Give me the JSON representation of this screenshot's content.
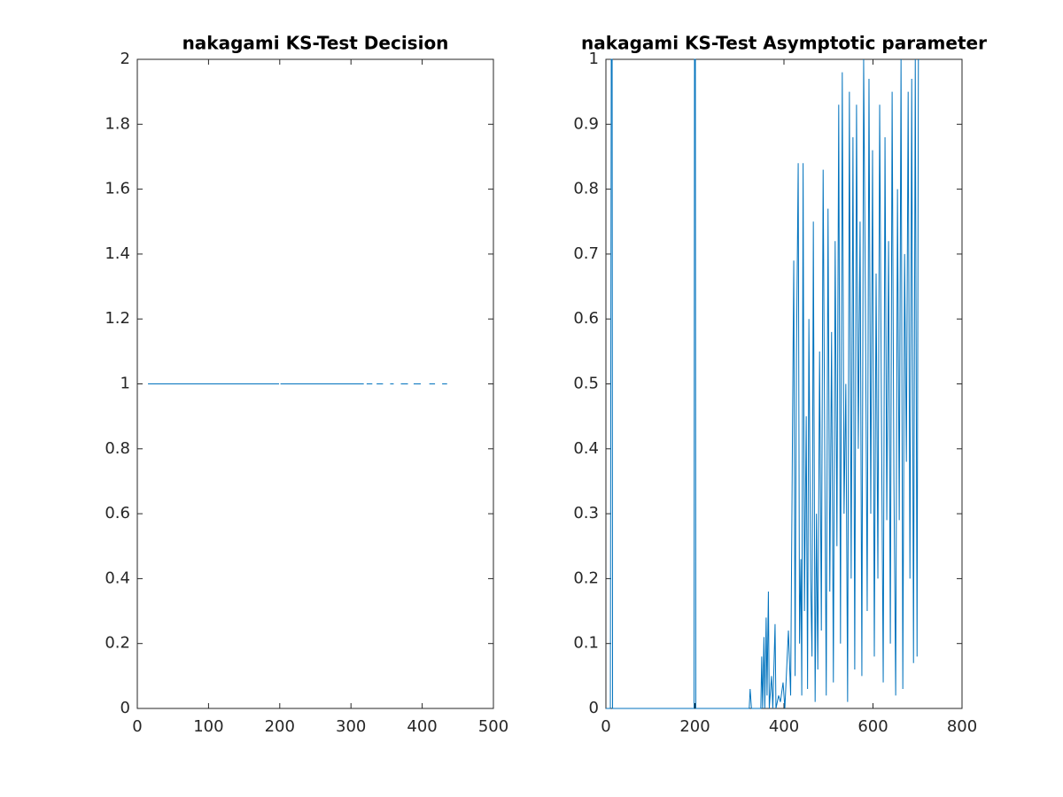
{
  "chart_data": [
    {
      "type": "line",
      "title": "nakagami KS-Test Decision",
      "x": [
        15,
        199,
        200,
        201,
        318,
        319,
        322,
        330,
        331,
        336,
        345,
        348,
        355,
        360,
        362,
        370,
        380,
        385,
        388,
        398,
        405,
        410,
        418,
        425,
        428,
        435
      ],
      "series": [
        {
          "color": "#0072bd",
          "values": [
            1,
            1,
            null,
            1,
            1,
            null,
            1,
            1,
            null,
            1,
            1,
            null,
            1,
            1,
            null,
            1,
            1,
            null,
            1,
            1,
            null,
            1,
            1,
            null,
            1,
            1
          ]
        }
      ],
      "xlim": [
        0,
        500
      ],
      "xticks": [
        0,
        100,
        200,
        300,
        400,
        500
      ],
      "ylim": [
        0,
        2
      ],
      "yticks": [
        0,
        0.2,
        0.4,
        0.6,
        0.8,
        1,
        1.2,
        1.4,
        1.6,
        1.8,
        2
      ]
    },
    {
      "type": "line",
      "title": "nakagami KS-Test Asymptotic parameter",
      "x": [
        0,
        10,
        12,
        14,
        15,
        198,
        199,
        201,
        202,
        322,
        324,
        327,
        348,
        350,
        352,
        355,
        357,
        360,
        362,
        365,
        367,
        372,
        375,
        380,
        382,
        388,
        392,
        398,
        402,
        410,
        415,
        420,
        422,
        425,
        428,
        432,
        435,
        438,
        440,
        443,
        446,
        450,
        453,
        456,
        460,
        463,
        466,
        470,
        473,
        476,
        480,
        484,
        488,
        492,
        495,
        499,
        503,
        507,
        511,
        515,
        519,
        523,
        527,
        531,
        535,
        539,
        543,
        547,
        551,
        555,
        559,
        563,
        567,
        571,
        575,
        579,
        583,
        587,
        591,
        595,
        599,
        603,
        607,
        611,
        615,
        619,
        623,
        627,
        631,
        635,
        639,
        643,
        647,
        651,
        655,
        659,
        663,
        667,
        671,
        675,
        679,
        683,
        687,
        691,
        695,
        699,
        702
      ],
      "series": [
        {
          "color": "#0072bd",
          "values": [
            0,
            0,
            1,
            1,
            0,
            0,
            1,
            1,
            0,
            0,
            0.03,
            0,
            0,
            0.08,
            0,
            0.11,
            0,
            0.14,
            0.02,
            0.18,
            0,
            0.05,
            0,
            0.13,
            0,
            0.02,
            0.01,
            0.04,
            0,
            0.12,
            0.02,
            0.51,
            0.69,
            0.05,
            0.54,
            0.84,
            0.1,
            0.23,
            0.02,
            0.84,
            0.15,
            0.45,
            0.03,
            0.6,
            0.2,
            0.08,
            0.75,
            0.01,
            0.3,
            0.06,
            0.55,
            0.12,
            0.83,
            0.35,
            0.02,
            0.77,
            0.18,
            0.58,
            0.04,
            0.72,
            0.25,
            0.93,
            0.1,
            0.98,
            0.3,
            0.5,
            0.01,
            0.95,
            0.2,
            0.88,
            0.06,
            0.93,
            0.4,
            0.75,
            0.05,
            1,
            0.62,
            0.15,
            0.97,
            0.3,
            0.86,
            0.08,
            0.67,
            0.2,
            0.93,
            0.45,
            0.04,
            0.88,
            0.29,
            0.72,
            0.1,
            0.95,
            0.35,
            0.02,
            0.8,
            0.29,
            1,
            0.03,
            0.7,
            0.38,
            0.95,
            0.2,
            0.97,
            0.07,
            1,
            0.08,
            1
          ]
        }
      ],
      "xlim": [
        0,
        800
      ],
      "xticks": [
        0,
        200,
        400,
        600,
        800
      ],
      "ylim": [
        0,
        1
      ],
      "yticks": [
        0,
        0.1,
        0.2,
        0.3,
        0.4,
        0.5,
        0.6,
        0.7,
        0.8,
        0.9,
        1
      ]
    }
  ]
}
